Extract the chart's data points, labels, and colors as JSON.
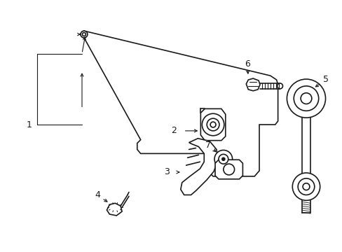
{
  "bg_color": "#ffffff",
  "line_color": "#1a1a1a",
  "figsize": [
    4.89,
    3.6
  ],
  "dpi": 100,
  "label_fontsize": 9
}
